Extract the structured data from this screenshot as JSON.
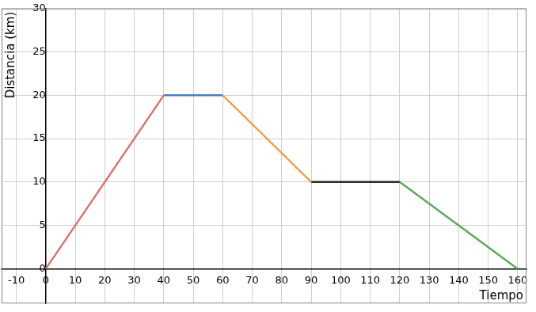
{
  "chart_data": {
    "type": "line",
    "x_label": "Tiempo",
    "y_label": "Distancia (km)",
    "series": [
      {
        "color": "#d9736f",
        "x": [
          0,
          40
        ],
        "values": [
          0,
          20
        ]
      },
      {
        "color": "#4a7fc1",
        "x": [
          40,
          60
        ],
        "values": [
          20,
          20
        ]
      },
      {
        "color": "#f0a04b",
        "x": [
          60,
          90
        ],
        "values": [
          20,
          10
        ]
      },
      {
        "color": "#2d2d2d",
        "x": [
          90,
          120
        ],
        "values": [
          10,
          10
        ]
      },
      {
        "color": "#5aab5a",
        "x": [
          120,
          160
        ],
        "values": [
          10,
          0
        ]
      }
    ],
    "xlim": [
      -15,
      163
    ],
    "xticks": [
      -10,
      0,
      10,
      20,
      30,
      40,
      50,
      60,
      70,
      80,
      90,
      100,
      110,
      120,
      130,
      140,
      150,
      160
    ],
    "ylim": [
      -4,
      30
    ],
    "yticks": [
      0,
      5,
      10,
      15,
      20,
      25,
      30
    ],
    "grid": true
  }
}
